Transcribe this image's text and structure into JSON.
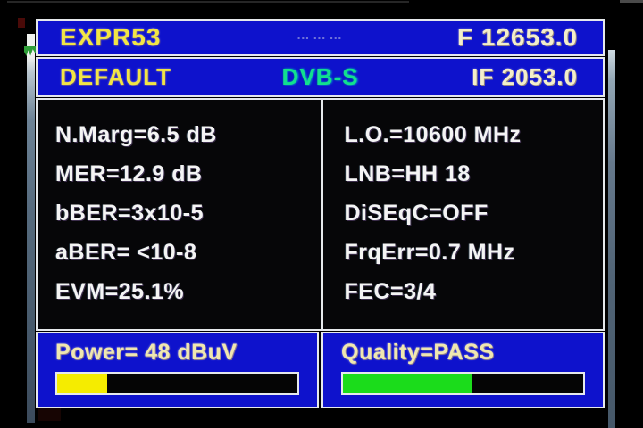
{
  "colors": {
    "panel_blue": "#0e12cc",
    "border_white": "#e6e9ec",
    "text_yellow": "#f2e544",
    "text_white": "#f4f4f4",
    "dvbs_green": "#12e08e",
    "power_fill_yellow": "#f5ec00",
    "quality_fill_green": "#1bdc1b",
    "bar_track_black": "#050505"
  },
  "header": {
    "satellite_name": "EXPR53",
    "center_marks": "--- --- ---",
    "frequency": "F 12653.0",
    "profile_name": "DEFAULT",
    "signal_standard": "DVB-S",
    "if_frequency": "IF 2053.0"
  },
  "measurements": {
    "left_rows": [
      "N.Marg=6.5 dB",
      "MER=12.9 dB",
      "bBER=3x10-5",
      "aBER= <10-8",
      "EVM=25.1%"
    ],
    "right_rows": [
      "L.O.=10600 MHz",
      "LNB=HH 18",
      "DiSEqC=OFF",
      "FrqErr=0.7 MHz",
      "FEC=3/4"
    ]
  },
  "bars": {
    "power": {
      "label": "Power= 48 dBuV",
      "value": 48,
      "unit": "dBuV",
      "fill_percent": 21
    },
    "quality": {
      "label": "Quality=PASS",
      "status": "PASS",
      "fill_percent": 54
    }
  }
}
